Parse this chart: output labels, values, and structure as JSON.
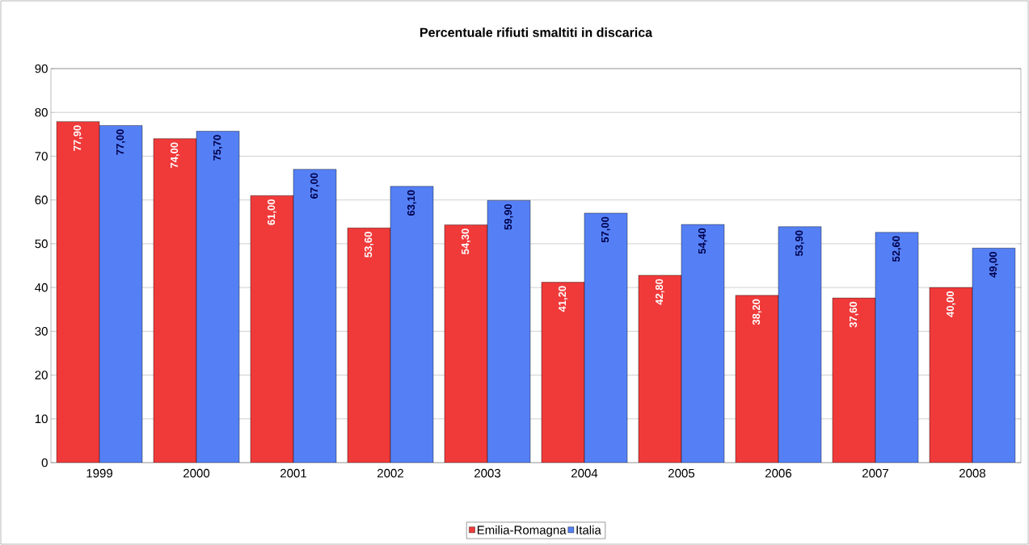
{
  "chart_data": {
    "type": "bar",
    "title": "Percentuale rifiuti smaltiti in discarica",
    "categories": [
      "1999",
      "2000",
      "2001",
      "2002",
      "2003",
      "2004",
      "2005",
      "2006",
      "2007",
      "2008"
    ],
    "series": [
      {
        "name": "Emilia-Romagna",
        "color": "#f03a3a",
        "values": [
          77.9,
          74.0,
          61.0,
          53.6,
          54.3,
          41.2,
          42.8,
          38.2,
          37.6,
          40.0
        ],
        "value_labels": [
          "77,90",
          "74,00",
          "61,00",
          "53,60",
          "54,30",
          "41,20",
          "42,80",
          "38,20",
          "37,60",
          "40,00"
        ]
      },
      {
        "name": "Italia",
        "color": "#5580f5",
        "values": [
          77.0,
          75.7,
          67.0,
          63.1,
          59.9,
          57.0,
          54.4,
          53.9,
          52.6,
          49.0
        ],
        "value_labels": [
          "77,00",
          "75,70",
          "67,00",
          "63,10",
          "59,90",
          "57,00",
          "54,40",
          "53,90",
          "52,60",
          "49,00"
        ]
      }
    ],
    "ylim": [
      0,
      90
    ],
    "yticks": [
      0,
      10,
      20,
      30,
      40,
      50,
      60,
      70,
      80,
      90
    ],
    "grid": "y",
    "legend": "bottom"
  }
}
